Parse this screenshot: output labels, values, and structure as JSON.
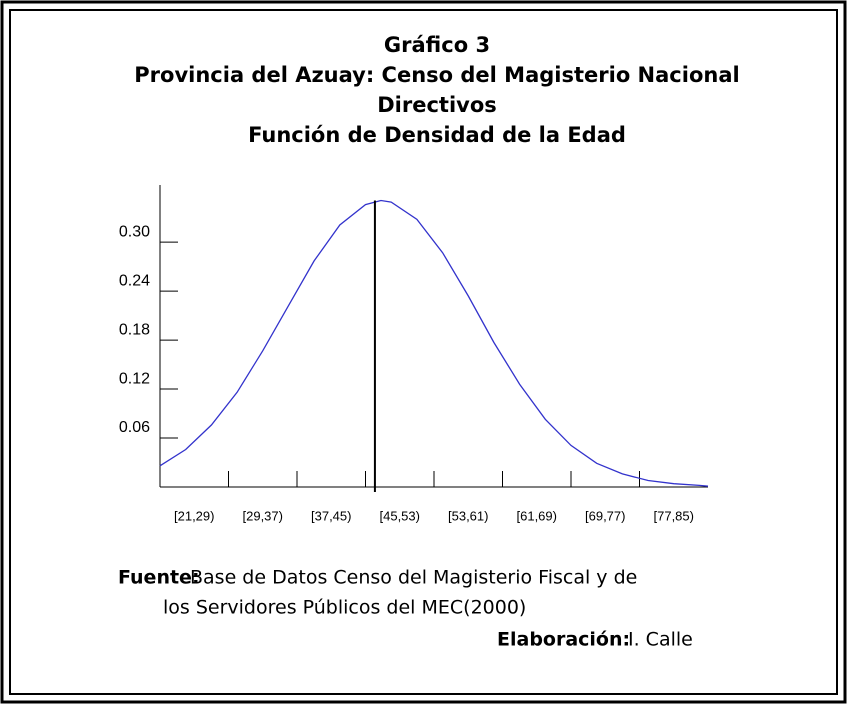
{
  "chart_data": {
    "type": "line",
    "title_lines": [
      "Gráfico 3",
      "Provincia del Azuay: Censo del Magisterio Nacional",
      "Directivos",
      "Función de Densidad de la Edad"
    ],
    "categories": [
      "[21,29)",
      "[29,37)",
      "[37,45)",
      "[45,53)",
      "[53,61)",
      "[61,69)",
      "[69,77)",
      "[77,85)"
    ],
    "xlim": [
      21,
      85
    ],
    "xticks": [
      29,
      37,
      45,
      53,
      61,
      69,
      77
    ],
    "ylim": [
      0,
      0.37
    ],
    "yticks": [
      0.06,
      0.12,
      0.18,
      0.24,
      0.3
    ],
    "ytick_labels": [
      "0.06",
      "0.12",
      "0.18",
      "0.24",
      "0.30"
    ],
    "series": [
      {
        "color": "#3333cc",
        "x": [
          21,
          24,
          27,
          30,
          33,
          36,
          39,
          42,
          45,
          46.8,
          48,
          51,
          54,
          57,
          60,
          63,
          66,
          69,
          72,
          75,
          78,
          81,
          84,
          85
        ],
        "values": [
          0.026,
          0.046,
          0.076,
          0.116,
          0.167,
          0.222,
          0.277,
          0.321,
          0.346,
          0.351,
          0.349,
          0.328,
          0.287,
          0.234,
          0.177,
          0.126,
          0.083,
          0.051,
          0.029,
          0.016,
          0.008,
          0.004,
          0.002,
          0.001
        ]
      }
    ],
    "mean_line": {
      "x": 46.1
    },
    "source_label": "Fuente:",
    "source_lines": [
      "Base de Datos Censo del Magisterio Fiscal y de",
      "los Servidores Públicos del MEC(2000)"
    ],
    "author_label": "Elaboración:",
    "author": "I. Calle"
  }
}
